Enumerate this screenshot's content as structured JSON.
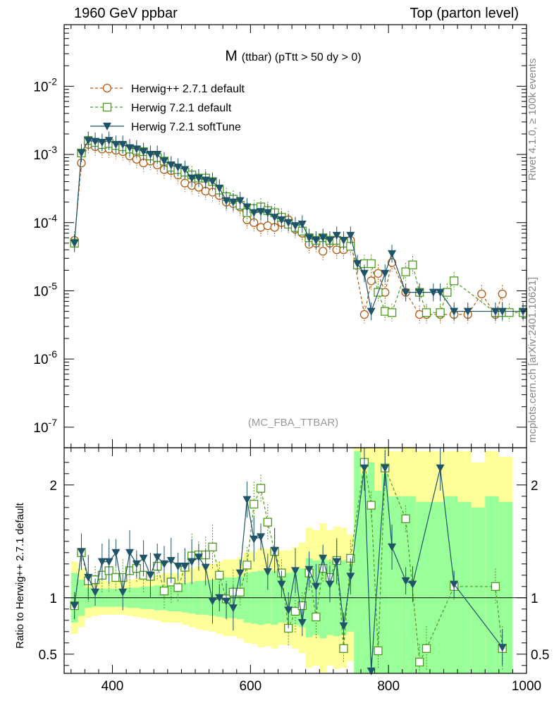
{
  "header": {
    "left": "1960 GeV ppbar",
    "right": "Top (parton level)"
  },
  "side_labels": {
    "top": "Rivet 4.1.0, ≥ 100k events",
    "bottom": "mcplots.cern.ch [arXiv:2401.10621]"
  },
  "colors": {
    "herwig_pp": "#b35a12",
    "herwig_721_default": "#4d9a1e",
    "herwig_721_soft": "#1f5468",
    "band_yellow": "#ffff99",
    "band_green": "#99ff99"
  },
  "chart_data": [
    {
      "type": "line",
      "title": "M (ttbar) (pTtt > 50 dy > 0)",
      "title_main": "M",
      "title_sub": "(ttbar) (pTtt > 50 dy > 0)",
      "watermark": "(MC_FBA_TTBAR)",
      "yscale": "log",
      "xlim": [
        330,
        1000
      ],
      "ylim": [
        5e-08,
        0.08
      ],
      "ytick_labels": [
        "10^-2",
        "10^-3",
        "10^-4",
        "10^-5",
        "10^-6",
        "10^-7"
      ],
      "legend_position": "top-left",
      "series": [
        {
          "name": "Herwig++ 2.7.1 default",
          "marker": "open-circle",
          "linestyle": "dashed",
          "x": [
            345,
            355,
            365,
            375,
            385,
            395,
            405,
            415,
            425,
            435,
            445,
            455,
            465,
            475,
            485,
            495,
            505,
            515,
            525,
            535,
            545,
            555,
            565,
            575,
            585,
            595,
            605,
            615,
            625,
            635,
            645,
            655,
            665,
            675,
            685,
            695,
            705,
            715,
            725,
            735,
            745,
            765,
            775,
            785,
            795,
            805,
            825,
            845,
            855,
            875,
            895,
            915,
            935,
            955,
            965
          ],
          "values": [
            5.5e-05,
            0.00075,
            0.0014,
            0.0013,
            0.0012,
            0.0012,
            0.00115,
            0.0011,
            0.00095,
            0.00085,
            0.00075,
            0.0008,
            0.0007,
            0.0006,
            0.00058,
            0.0005,
            0.00038,
            0.00035,
            0.00033,
            0.00029,
            0.00028,
            0.00025,
            0.0002,
            0.00019,
            0.00017,
            0.00011,
            0.0001,
            8.5e-05,
            9e-05,
            8.5e-05,
            0.0001,
            0.00011,
            8e-05,
            7e-05,
            4.8e-05,
            5e-05,
            3.8e-05,
            5e-05,
            4e-05,
            4e-05,
            5.5e-05,
            4.5e-06,
            1.4e-05,
            1.8e-05,
            9.5e-06,
            2.6e-05,
            9.5e-06,
            4.5e-06,
            4.5e-06,
            4.5e-06,
            4.5e-06,
            4.5e-06,
            9e-06,
            4.5e-06,
            9e-06
          ]
        },
        {
          "name": "Herwig 7.2.1 default",
          "marker": "open-square",
          "linestyle": "dashed",
          "x": [
            345,
            355,
            365,
            375,
            385,
            395,
            405,
            415,
            425,
            435,
            445,
            455,
            465,
            475,
            485,
            495,
            505,
            515,
            525,
            535,
            545,
            555,
            565,
            575,
            585,
            595,
            605,
            615,
            625,
            635,
            645,
            655,
            665,
            675,
            685,
            695,
            705,
            715,
            725,
            735,
            745,
            755,
            765,
            775,
            785,
            795,
            805,
            825,
            835,
            845,
            855,
            875,
            885,
            895,
            955,
            965,
            975,
            995
          ],
          "values": [
            5e-05,
            0.00105,
            0.0016,
            0.0015,
            0.0014,
            0.00145,
            0.00135,
            0.0013,
            0.0012,
            0.00115,
            0.0011,
            0.00095,
            0.0009,
            0.0008,
            0.00065,
            0.0006,
            0.00055,
            0.0005,
            0.00045,
            0.00045,
            0.0004,
            0.0003,
            0.00024,
            0.00022,
            0.00018,
            0.00014,
            0.00016,
            0.00017,
            0.00015,
            0.00014,
            0.00012,
            9.5e-05,
            8.5e-05,
            7.5e-05,
            6e-05,
            5.5e-05,
            6e-05,
            5.5e-05,
            5.5e-05,
            5e-05,
            4.5e-05,
            2.4e-05,
            2.5e-05,
            2.5e-05,
            9.5e-06,
            5e-06,
            4.8e-06,
            1.9e-05,
            2.4e-05,
            9.5e-06,
            4.8e-06,
            4.8e-06,
            9.5e-06,
            1.4e-05,
            4.8e-06,
            4.8e-06,
            4.8e-06,
            4.8e-06
          ]
        },
        {
          "name": "Herwig 7.2.1 softTune",
          "marker": "filled-triangle-down",
          "linestyle": "solid",
          "x": [
            345,
            355,
            365,
            375,
            385,
            395,
            405,
            415,
            425,
            435,
            445,
            455,
            465,
            475,
            485,
            495,
            505,
            515,
            525,
            535,
            545,
            555,
            565,
            575,
            585,
            595,
            605,
            615,
            625,
            635,
            645,
            655,
            665,
            675,
            685,
            695,
            705,
            715,
            725,
            735,
            745,
            755,
            765,
            775,
            795,
            805,
            825,
            845,
            865,
            875,
            895,
            915,
            955,
            965,
            995
          ],
          "values": [
            5e-05,
            0.00105,
            0.0016,
            0.00155,
            0.0015,
            0.0016,
            0.0014,
            0.0014,
            0.00125,
            0.0012,
            0.0011,
            0.001,
            0.001,
            0.0008,
            0.0007,
            0.00065,
            0.0006,
            0.00045,
            0.00045,
            0.00042,
            0.0004,
            0.00032,
            0.00021,
            0.0002,
            0.00021,
            0.00017,
            0.00014,
            0.000145,
            0.00014,
            0.00012,
            0.00011,
            0.0001,
            9e-05,
            9.5e-05,
            6e-05,
            5.5e-05,
            6e-05,
            5.5e-05,
            6.5e-05,
            5.5e-05,
            6.5e-05,
            2.5e-05,
            1.8e-05,
            5e-06,
            1.8e-05,
            3.5e-05,
            9.5e-06,
            9.5e-06,
            9.5e-06,
            9.5e-06,
            5e-06,
            5e-06,
            5e-06,
            5e-06,
            5e-06
          ]
        }
      ]
    },
    {
      "type": "line",
      "ylabel": "Ratio to Herwig++ 2.7.1 default",
      "xlabel": "",
      "xlim": [
        330,
        1000
      ],
      "ylim": [
        0.33,
        2.33
      ],
      "xtick_labels": [
        "400",
        "600",
        "800",
        "1000"
      ],
      "ytick_labels": [
        "0.5",
        "1",
        "2"
      ],
      "reference_line": 1,
      "bands": {
        "x_edges": [
          340,
          350,
          360,
          370,
          380,
          390,
          400,
          410,
          420,
          430,
          440,
          450,
          460,
          470,
          480,
          490,
          500,
          510,
          520,
          530,
          540,
          550,
          560,
          570,
          580,
          590,
          600,
          610,
          620,
          630,
          640,
          650,
          660,
          670,
          680,
          690,
          700,
          710,
          720,
          730,
          740,
          750,
          760,
          770,
          780,
          790,
          800,
          820,
          840,
          860,
          880,
          900,
          920,
          940,
          960,
          980
        ],
        "yellow_half": [
          0.32,
          0.26,
          0.18,
          0.16,
          0.15,
          0.15,
          0.15,
          0.15,
          0.16,
          0.17,
          0.18,
          0.19,
          0.2,
          0.22,
          0.22,
          0.22,
          0.24,
          0.26,
          0.28,
          0.29,
          0.3,
          0.32,
          0.34,
          0.34,
          0.36,
          0.4,
          0.41,
          0.44,
          0.43,
          0.45,
          0.42,
          0.42,
          0.45,
          0.49,
          0.62,
          0.6,
          0.66,
          0.6,
          0.63,
          0.62,
          0.56,
          1.8,
          1.6,
          1.7,
          1.4,
          1.6,
          1.3,
          1.4,
          1.3,
          1.3,
          1.3,
          1.3,
          1.2,
          1.3,
          1.25
        ],
        "green_half": [
          0.22,
          0.16,
          0.09,
          0.08,
          0.08,
          0.08,
          0.08,
          0.08,
          0.09,
          0.09,
          0.1,
          0.1,
          0.11,
          0.11,
          0.12,
          0.12,
          0.13,
          0.14,
          0.15,
          0.15,
          0.16,
          0.17,
          0.18,
          0.18,
          0.19,
          0.22,
          0.23,
          0.24,
          0.23,
          0.24,
          0.22,
          0.22,
          0.24,
          0.26,
          0.35,
          0.33,
          0.36,
          0.33,
          0.34,
          0.33,
          0.3,
          1.3,
          1.1,
          1.2,
          0.95,
          1.1,
          0.9,
          0.9,
          0.85,
          0.85,
          0.9,
          0.85,
          0.8,
          0.9,
          0.85
        ]
      },
      "series": [
        {
          "name": "Herwig 7.2.1 default",
          "x": [
            345,
            355,
            365,
            375,
            385,
            395,
            405,
            415,
            425,
            435,
            445,
            455,
            465,
            475,
            485,
            495,
            505,
            515,
            525,
            535,
            545,
            555,
            565,
            575,
            585,
            595,
            605,
            615,
            625,
            635,
            645,
            655,
            665,
            675,
            685,
            695,
            705,
            715,
            725,
            735,
            745,
            765,
            775,
            785,
            795,
            825,
            845,
            855,
            895,
            955,
            965
          ],
          "values": [
            0.93,
            1.4,
            1.15,
            1.16,
            1.2,
            1.24,
            1.18,
            1.18,
            1.24,
            1.26,
            1.2,
            1.19,
            1.28,
            1.06,
            1.14,
            1.09,
            1.27,
            1.37,
            1.38,
            1.38,
            1.45,
            1.2,
            0.99,
            1.05,
            1.05,
            1.29,
            1.83,
            1.97,
            1.67,
            1.41,
            1.22,
            0.73,
            0.88,
            0.93,
            1.22,
            0.83,
            1.26,
            1.18,
            1.33,
            0.55,
            1.35,
            2.2,
            1.82,
            0.53,
            2.15,
            1.7,
            0.43,
            0.55,
            1.1,
            1.1,
            0.55
          ]
        },
        {
          "name": "Herwig 7.2.1 softTune",
          "x": [
            345,
            355,
            365,
            375,
            385,
            395,
            405,
            415,
            425,
            435,
            445,
            455,
            465,
            475,
            485,
            495,
            505,
            515,
            525,
            535,
            545,
            555,
            565,
            575,
            585,
            595,
            605,
            615,
            625,
            635,
            645,
            655,
            665,
            675,
            685,
            695,
            705,
            715,
            725,
            735,
            745,
            765,
            775,
            795,
            805,
            825,
            835,
            875,
            895,
            965
          ],
          "values": [
            0.93,
            1.41,
            1.18,
            1.05,
            1.32,
            1.32,
            1.4,
            1.05,
            1.4,
            1.3,
            1.35,
            1.2,
            1.36,
            1.3,
            1.33,
            1.28,
            1.28,
            1.32,
            1.36,
            1.27,
            0.97,
            1.0,
            0.97,
            0.91,
            1.22,
            1.87,
            1.52,
            1.54,
            1.23,
            1.42,
            1.12,
            0.89,
            1.24,
            0.78,
            1.25,
            1.1,
            1.35,
            1.12,
            1.32,
            0.75,
            1.19,
            2.15,
            0.35,
            2.15,
            1.45,
            1.15,
            1.12,
            2.15,
            1.12,
            0.56
          ]
        }
      ]
    }
  ]
}
